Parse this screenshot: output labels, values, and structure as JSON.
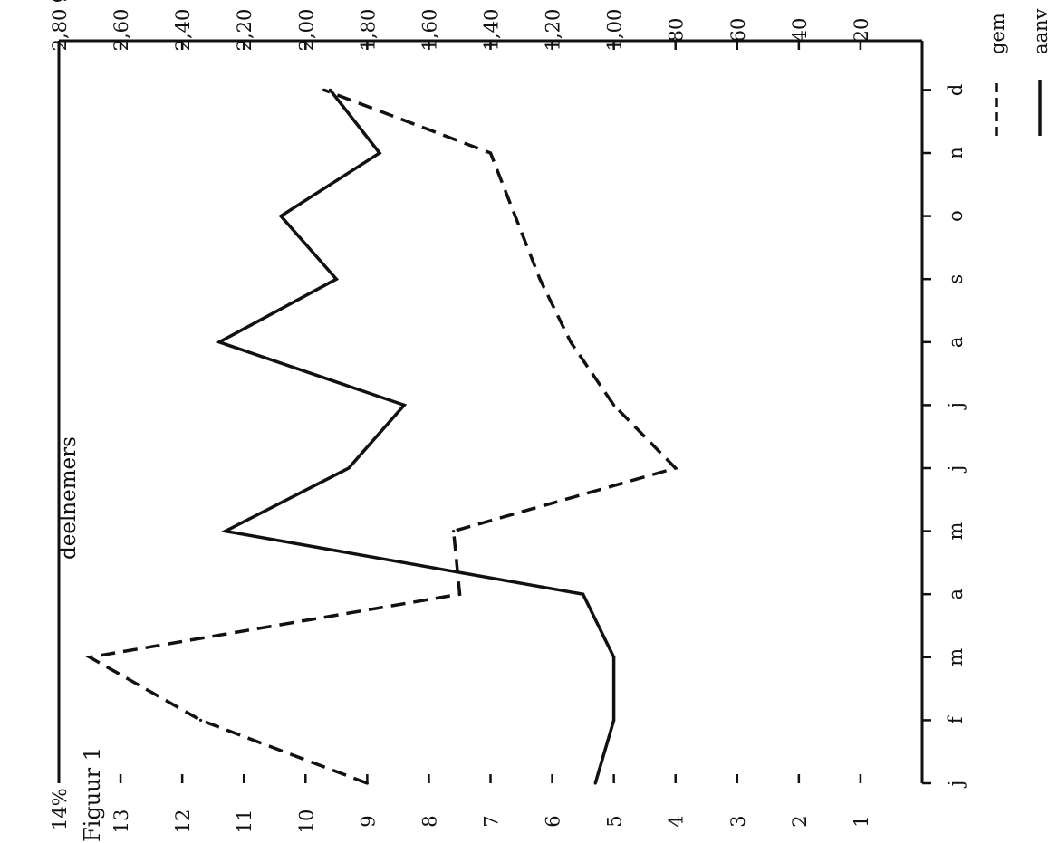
{
  "figure_label": "Figuur 1",
  "center_label": "deelnemers",
  "chart_data": {
    "type": "line",
    "orientation": "rotated-90-ccw",
    "categories": [
      "j",
      "f",
      "m",
      "a",
      "m",
      "j",
      "j",
      "a",
      "s",
      "o",
      "n",
      "d"
    ],
    "left_axis": {
      "unit_label": "14%",
      "ticks": [
        "13",
        "12",
        "11",
        "10",
        "9",
        "8",
        "7",
        "6",
        "5",
        "4",
        "3",
        "2",
        "1"
      ],
      "range": [
        0,
        14
      ]
    },
    "right_axis": {
      "unit_label": "glds.",
      "ticks": [
        "2,80",
        "2,60",
        "2,40",
        "2,20",
        "2,00",
        "1,80",
        "1,60",
        "1,40",
        "1,20",
        "1,00",
        "80",
        "60",
        "40",
        "20"
      ],
      "range": [
        0,
        2.8
      ]
    },
    "legend": [
      "gem",
      "aanv"
    ],
    "series": [
      {
        "name": "gem",
        "style": "dashed",
        "axis": "left",
        "values": [
          9.0,
          11.7,
          13.5,
          7.5,
          7.6,
          4.0,
          5.0,
          5.7,
          6.2,
          6.6,
          7.0,
          9.7
        ]
      },
      {
        "name": "aanv",
        "style": "solid",
        "axis": "left",
        "values": [
          5.3,
          5.0,
          5.0,
          5.5,
          11.3,
          9.3,
          8.4,
          11.4,
          9.5,
          10.4,
          8.8,
          9.6
        ]
      }
    ]
  }
}
